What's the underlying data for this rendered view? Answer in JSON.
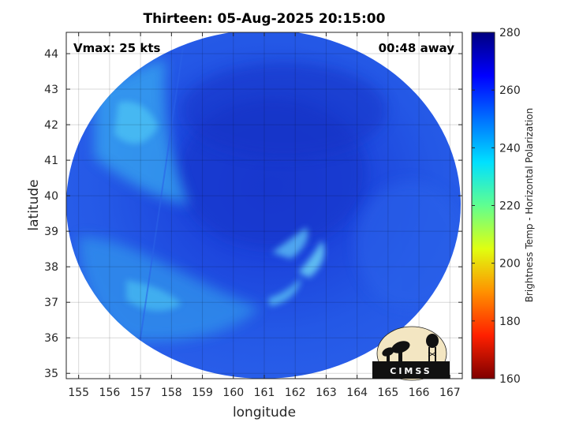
{
  "title": "Thirteen: 05-Aug-2025 20:15:00",
  "vmax_label": "Vmax: 25 kts",
  "time_away_label": "00:48 away",
  "map": {
    "x_axis": {
      "label": "longitude",
      "range": [
        154.6,
        167.4
      ],
      "ticks": [
        "155",
        "156",
        "157",
        "158",
        "159",
        "160",
        "161",
        "162",
        "163",
        "164",
        "165",
        "166",
        "167"
      ]
    },
    "y_axis": {
      "label": "latitude",
      "range": [
        34.85,
        44.6
      ],
      "ticks": [
        "35",
        "36",
        "37",
        "38",
        "39",
        "40",
        "41",
        "42",
        "43",
        "44"
      ]
    },
    "grid": true,
    "center": {
      "lon": 161.0,
      "lat": 39.7
    }
  },
  "colorbar": {
    "label": "Brightness Temp - Horizontal Polarization",
    "range": [
      160,
      280
    ],
    "ticks": [
      "280",
      "260",
      "240",
      "220",
      "200",
      "180",
      "160"
    ],
    "colormap": "jet",
    "colors": [
      "#7f0000",
      "#ff0000",
      "#ff8000",
      "#ffff00",
      "#80ff80",
      "#00ffff",
      "#0080ff",
      "#0000ff",
      "#00007f"
    ]
  },
  "logo": {
    "text": "CIMSS"
  }
}
